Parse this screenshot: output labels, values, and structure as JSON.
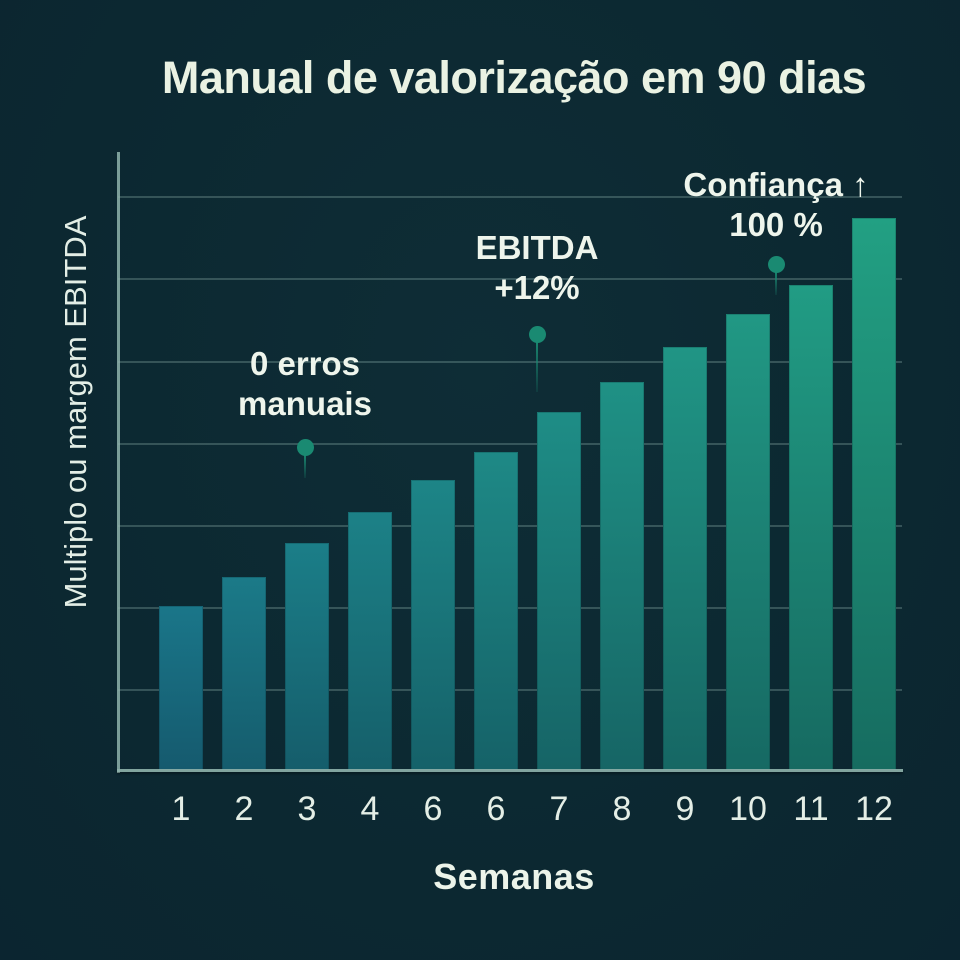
{
  "page": {
    "background_color": "#0c2830",
    "title_color": "#eaf2e3",
    "text_color": "#e4eee6",
    "axis_color": "#8fb3ac",
    "grid_color": "rgba(150,186,178,0.30)"
  },
  "chart_data": {
    "type": "bar",
    "title": "Manual de valorização em 90 dias",
    "xlabel": "Semanas",
    "ylabel": "Multiplo ou margem EBITDA",
    "categories": [
      "1",
      "2",
      "3",
      "4",
      "6",
      "6",
      "7",
      "8",
      "9",
      "10",
      "11",
      "12"
    ],
    "values": [
      164,
      193,
      227,
      258,
      290,
      318,
      358,
      388,
      423,
      456,
      485,
      552
    ],
    "ylim": [
      0,
      618
    ],
    "grid": "horizontal-only",
    "legend": "none",
    "bar_gradient": {
      "first_top": "#1a7689",
      "first_bottom": "#155a6e",
      "last_top": "#22a083",
      "last_bottom": "#166c60"
    },
    "annotations": [
      {
        "lines": [
          "0 erros",
          "manuais"
        ],
        "bar_index": 2,
        "dot_color": "#1a8a72"
      },
      {
        "lines": [
          "EBITDA",
          "+12%"
        ],
        "bar_index": 6,
        "dot_color": "#1a8a72"
      },
      {
        "lines": [
          "Confiança ↑",
          "100 %"
        ],
        "bar_index": 10,
        "dot_color": "#1a8a72"
      }
    ]
  }
}
